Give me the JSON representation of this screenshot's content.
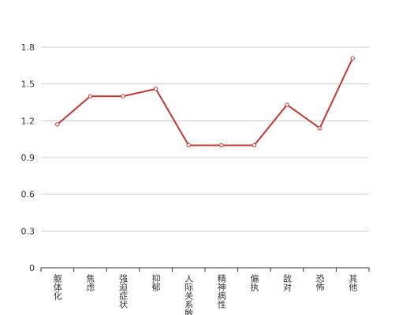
{
  "chart_data": {
    "type": "line",
    "categories": [
      "躯体化",
      "焦虑",
      "强迫症状",
      "抑郁",
      "人际关系敏感",
      "精神病性",
      "偏执",
      "敌对",
      "恐怖",
      "其他"
    ],
    "values": [
      1.17,
      1.4,
      1.4,
      1.46,
      1.0,
      1.0,
      1.0,
      1.33,
      1.14,
      1.71
    ],
    "color": "#c23531",
    "ylim": [
      0,
      1.8
    ],
    "yticks": [
      0,
      0.3,
      0.6,
      0.9,
      1.2,
      1.5,
      1.8
    ],
    "grid": true
  }
}
